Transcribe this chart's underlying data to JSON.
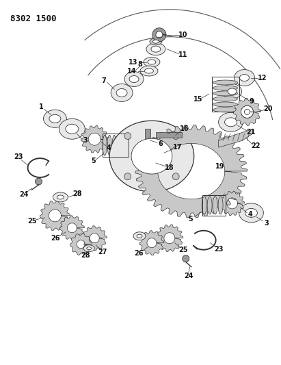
{
  "title": "8302 1500",
  "bg_color": "#ffffff",
  "text_color": "#111111",
  "figsize": [
    4.11,
    5.33
  ],
  "dpi": 100,
  "lw_thin": 0.6,
  "lw_med": 0.9,
  "fc_light": "#e8e8e8",
  "fc_mid": "#c8c8c8",
  "fc_dark": "#999999",
  "ec": "#333333"
}
